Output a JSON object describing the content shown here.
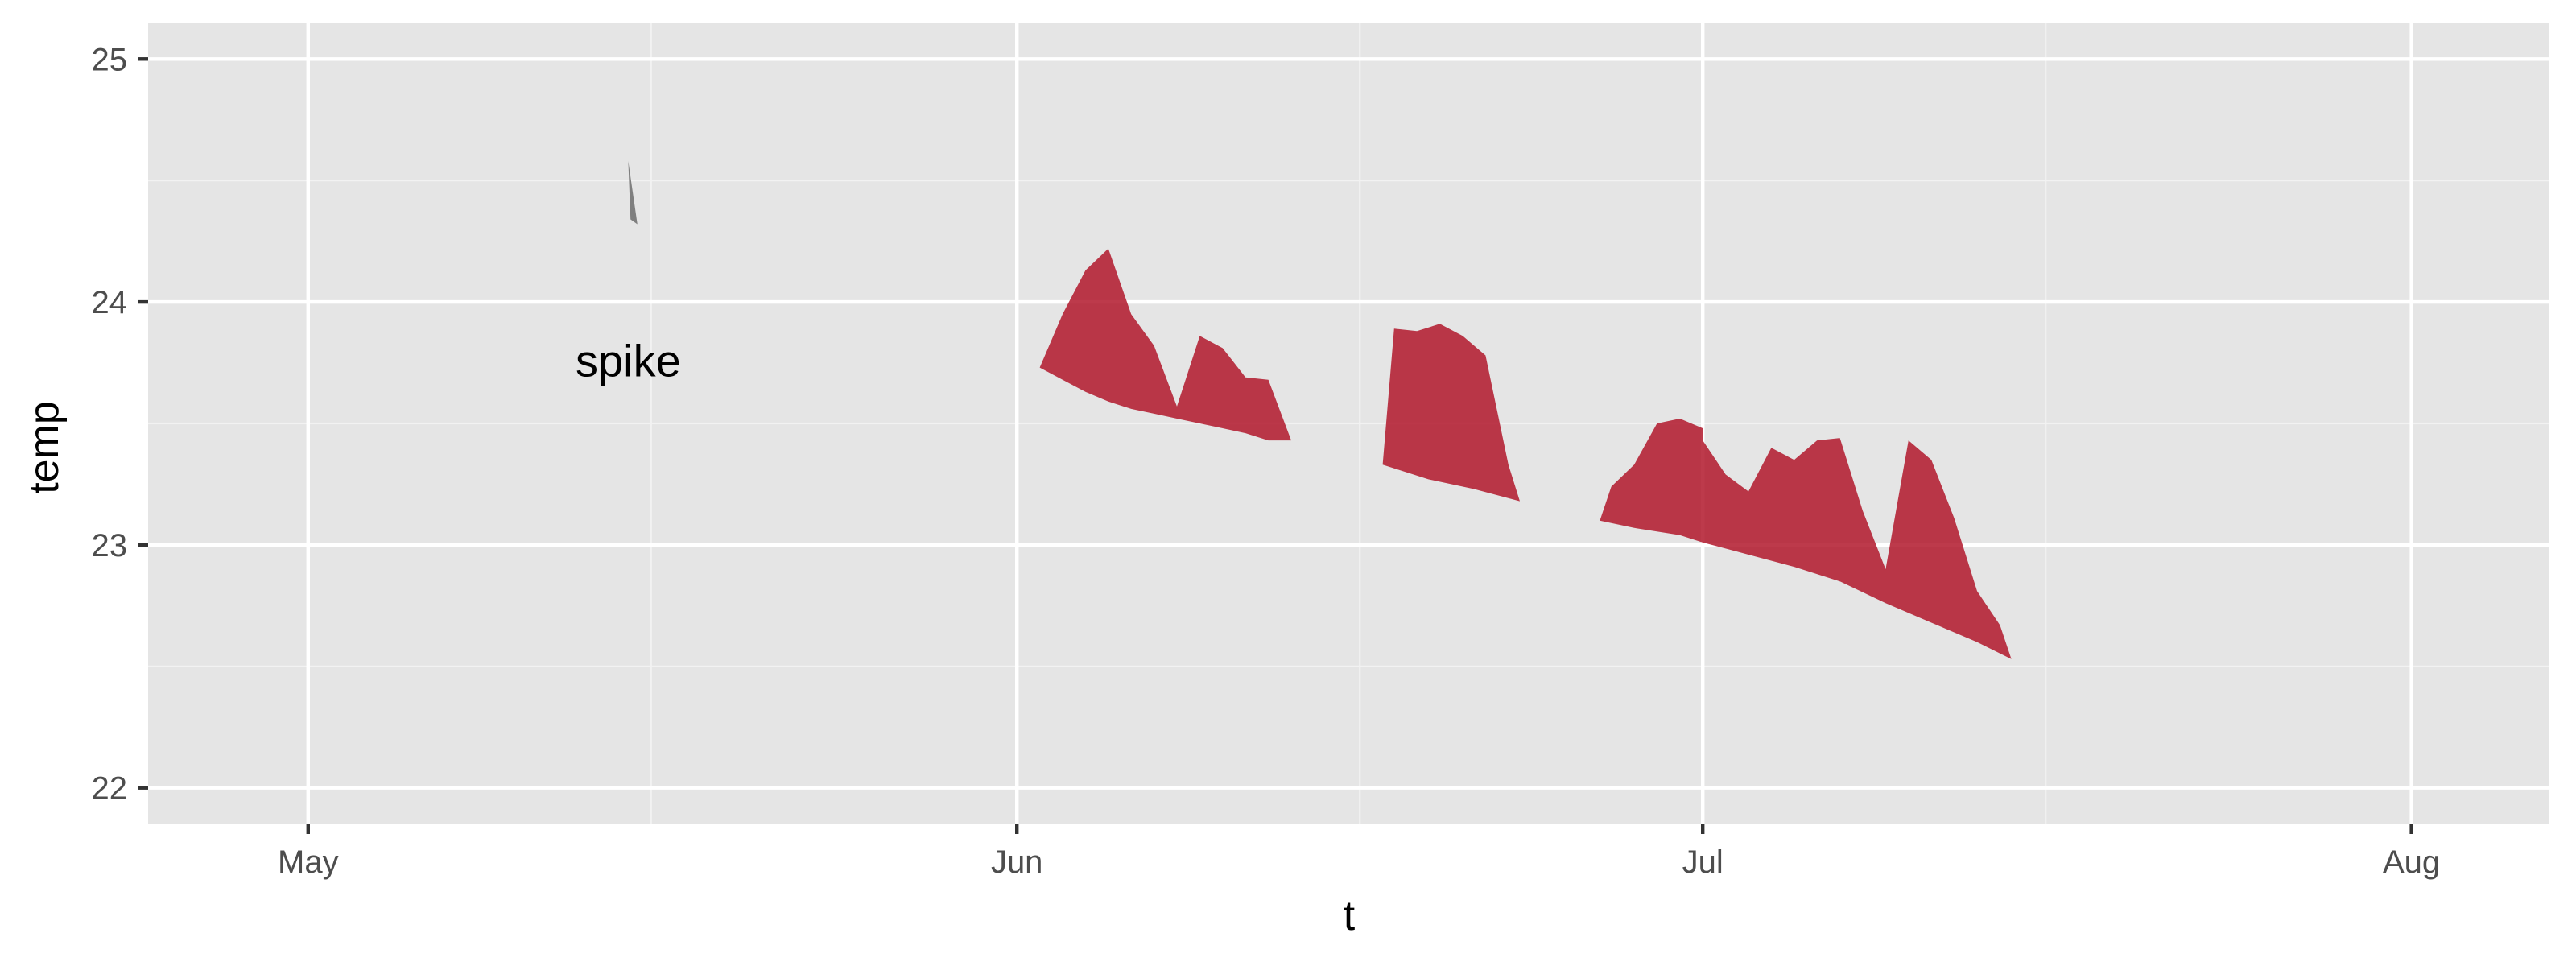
{
  "chart_data": {
    "type": "area",
    "xlabel": "t",
    "ylabel": "temp",
    "xlim": [
      "2023-04-24",
      "2023-08-07"
    ],
    "ylim": [
      21.85,
      25.15
    ],
    "x_ticks": [
      {
        "date": "2023-05-01",
        "label": "May"
      },
      {
        "date": "2023-06-01",
        "label": "Jun"
      },
      {
        "date": "2023-07-01",
        "label": "Jul"
      },
      {
        "date": "2023-08-01",
        "label": "Aug"
      }
    ],
    "x_minor_ticks": [
      "2023-05-16",
      "2023-06-16",
      "2023-07-16"
    ],
    "y_ticks": [
      22,
      23,
      24,
      25
    ],
    "y_minor_ticks": [
      22.5,
      23.5,
      24.5
    ],
    "grid": true,
    "series": [
      {
        "color": "#b2182b",
        "segments": [
          {
            "upper": [
              [
                "2023-06-02",
                23.73
              ],
              [
                "2023-06-03",
                23.95
              ],
              [
                "2023-06-04",
                24.13
              ],
              [
                "2023-06-05",
                24.22
              ],
              [
                "2023-06-06",
                23.95
              ],
              [
                "2023-06-07",
                23.82
              ],
              [
                "2023-06-08",
                23.57
              ],
              [
                "2023-06-09",
                23.86
              ],
              [
                "2023-06-10",
                23.81
              ],
              [
                "2023-06-11",
                23.69
              ],
              [
                "2023-06-12",
                23.68
              ],
              [
                "2023-06-13",
                23.43
              ]
            ],
            "lower": [
              [
                "2023-06-02",
                23.73
              ],
              [
                "2023-06-03",
                23.68
              ],
              [
                "2023-06-04",
                23.63
              ],
              [
                "2023-06-05",
                23.59
              ],
              [
                "2023-06-06",
                23.56
              ],
              [
                "2023-06-07",
                23.54
              ],
              [
                "2023-06-08",
                23.52
              ],
              [
                "2023-06-09",
                23.5
              ],
              [
                "2023-06-10",
                23.48
              ],
              [
                "2023-06-11",
                23.46
              ],
              [
                "2023-06-12",
                23.43
              ],
              [
                "2023-06-13",
                23.43
              ]
            ]
          },
          {
            "upper": [
              [
                "2023-06-17",
                23.33
              ],
              [
                "2023-06-17.5",
                23.89
              ],
              [
                "2023-06-18.5",
                23.88
              ],
              [
                "2023-06-19.5",
                23.91
              ],
              [
                "2023-06-20.5",
                23.86
              ],
              [
                "2023-06-21.5",
                23.78
              ],
              [
                "2023-06-22.5",
                23.33
              ],
              [
                "2023-06-23",
                23.18
              ]
            ],
            "lower": [
              [
                "2023-06-17",
                23.33
              ],
              [
                "2023-06-19",
                23.27
              ],
              [
                "2023-06-21",
                23.23
              ],
              [
                "2023-06-23",
                23.18
              ]
            ]
          },
          {
            "upper": [
              [
                "2023-06-26.5",
                23.1
              ],
              [
                "2023-06-27",
                23.24
              ],
              [
                "2023-06-28",
                23.33
              ],
              [
                "2023-06-29",
                23.5
              ],
              [
                "2023-06-30",
                23.52
              ],
              [
                "2023-06-31",
                23.48
              ],
              [
                "2023-07-01",
                23.43
              ],
              [
                "2023-07-02",
                23.29
              ],
              [
                "2023-07-03",
                23.22
              ],
              [
                "2023-07-04",
                23.4
              ],
              [
                "2023-07-05",
                23.35
              ],
              [
                "2023-07-06",
                23.43
              ],
              [
                "2023-07-07",
                23.44
              ],
              [
                "2023-07-08",
                23.14
              ],
              [
                "2023-07-09",
                22.9
              ],
              [
                "2023-07-10",
                23.43
              ],
              [
                "2023-07-11",
                23.35
              ],
              [
                "2023-07-12",
                23.11
              ],
              [
                "2023-07-13",
                22.81
              ],
              [
                "2023-07-14",
                22.67
              ],
              [
                "2023-07-14.5",
                22.53
              ]
            ],
            "lower": [
              [
                "2023-06-26.5",
                23.1
              ],
              [
                "2023-06-28",
                23.07
              ],
              [
                "2023-06-30",
                23.04
              ],
              [
                "2023-07-01",
                23.01
              ],
              [
                "2023-07-03",
                22.96
              ],
              [
                "2023-07-05",
                22.91
              ],
              [
                "2023-07-07",
                22.85
              ],
              [
                "2023-07-09",
                22.76
              ],
              [
                "2023-07-11",
                22.68
              ],
              [
                "2023-07-13",
                22.6
              ],
              [
                "2023-07-14.5",
                22.53
              ]
            ]
          }
        ]
      }
    ],
    "annotations": [
      {
        "text": "spike",
        "x": "2023-05-15",
        "y": 23.76,
        "arrow": {
          "from": [
            [
              "2023-05-15.1",
              24.34
            ],
            [
              "2023-05-15.4",
              24.32
            ]
          ],
          "to": [
            "2023-05-15",
            24.58
          ],
          "color": "#7f7f7f"
        }
      }
    ]
  }
}
